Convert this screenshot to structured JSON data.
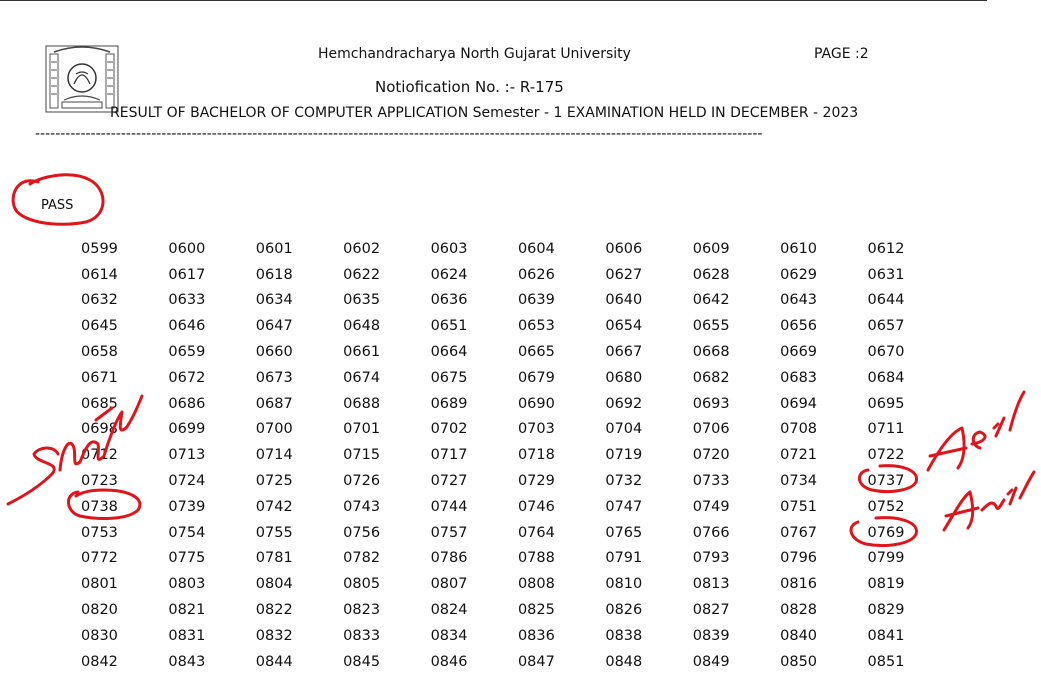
{
  "header": {
    "university": "Hemchandracharya North Gujarat University",
    "page_label": "PAGE :2",
    "notification": "Notiofication No. :- R-175",
    "result_title": "RESULT OF BACHELOR OF COMPUTER APPLICATION Semester - 1  EXAMINATION HELD IN DECEMBER - 2023",
    "separator": "------------------------------------------------------------------------------------------------------------------------------------------------"
  },
  "section": {
    "label": "PASS"
  },
  "seat_numbers": [
    [
      "0599",
      "0600",
      "0601",
      "0602",
      "0603",
      "0604",
      "0606",
      "0609",
      "0610",
      "0612"
    ],
    [
      "0614",
      "0617",
      "0618",
      "0622",
      "0624",
      "0626",
      "0627",
      "0628",
      "0629",
      "0631"
    ],
    [
      "0632",
      "0633",
      "0634",
      "0635",
      "0636",
      "0639",
      "0640",
      "0642",
      "0643",
      "0644"
    ],
    [
      "0645",
      "0646",
      "0647",
      "0648",
      "0651",
      "0653",
      "0654",
      "0655",
      "0656",
      "0657"
    ],
    [
      "0658",
      "0659",
      "0660",
      "0661",
      "0664",
      "0665",
      "0667",
      "0668",
      "0669",
      "0670"
    ],
    [
      "0671",
      "0672",
      "0673",
      "0674",
      "0675",
      "0679",
      "0680",
      "0682",
      "0683",
      "0684"
    ],
    [
      "0685",
      "0686",
      "0687",
      "0688",
      "0689",
      "0690",
      "0692",
      "0693",
      "0694",
      "0695"
    ],
    [
      "0698",
      "0699",
      "0700",
      "0701",
      "0702",
      "0703",
      "0704",
      "0706",
      "0708",
      "0711"
    ],
    [
      "0712",
      "0713",
      "0714",
      "0715",
      "0717",
      "0718",
      "0719",
      "0720",
      "0721",
      "0722"
    ],
    [
      "0723",
      "0724",
      "0725",
      "0726",
      "0727",
      "0729",
      "0732",
      "0733",
      "0734",
      "0737"
    ],
    [
      "0738",
      "0739",
      "0742",
      "0743",
      "0744",
      "0746",
      "0747",
      "0749",
      "0751",
      "0752"
    ],
    [
      "0753",
      "0754",
      "0755",
      "0756",
      "0757",
      "0764",
      "0765",
      "0766",
      "0767",
      "0769"
    ],
    [
      "0772",
      "0775",
      "0781",
      "0782",
      "0786",
      "0788",
      "0791",
      "0793",
      "0796",
      "0799"
    ],
    [
      "0801",
      "0803",
      "0804",
      "0805",
      "0807",
      "0808",
      "0810",
      "0813",
      "0816",
      "0819"
    ],
    [
      "0820",
      "0821",
      "0822",
      "0823",
      "0824",
      "0825",
      "0826",
      "0827",
      "0828",
      "0829"
    ],
    [
      "0830",
      "0831",
      "0832",
      "0833",
      "0834",
      "0836",
      "0838",
      "0839",
      "0840",
      "0841"
    ],
    [
      "0842",
      "0843",
      "0844",
      "0845",
      "0846",
      "0847",
      "0848",
      "0849",
      "0850",
      "0851"
    ]
  ],
  "annotation_color": "#e0141b",
  "logo_icon": "university-seal-icon"
}
